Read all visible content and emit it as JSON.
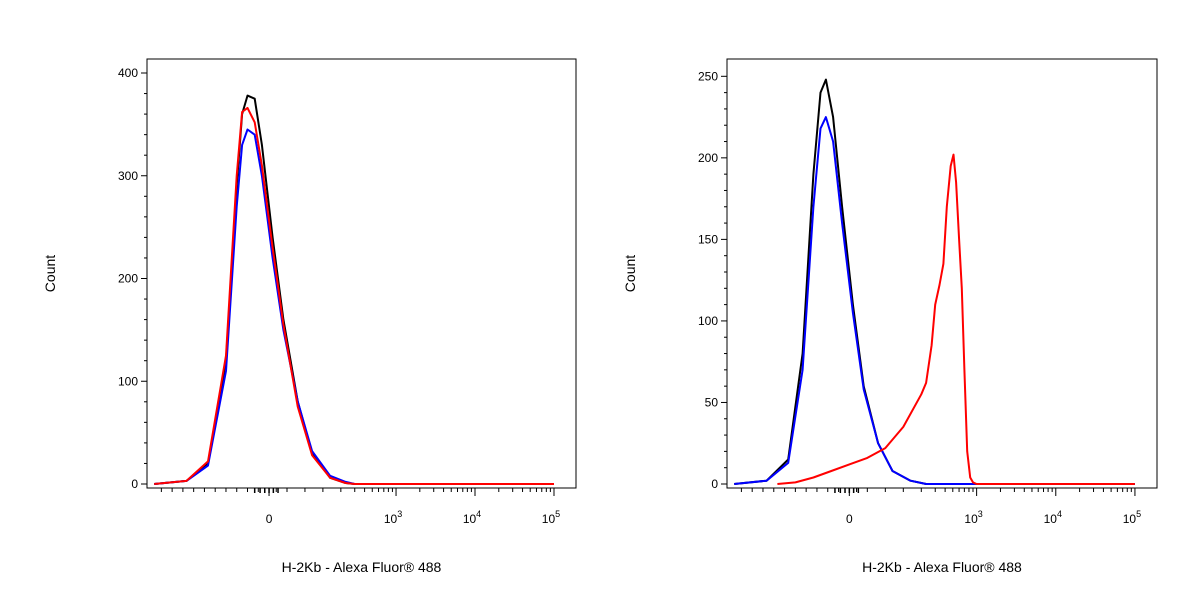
{
  "chart_data": [
    {
      "type": "line",
      "panel": "left",
      "xlabel": "H-2Kb - Alexa Fluor® 488",
      "ylabel": "Count",
      "x_scale": "biexponential",
      "ylim": [
        0,
        400
      ],
      "y_ticks": [
        {
          "value": 0,
          "label": "0"
        },
        {
          "value": 100,
          "label": "100"
        },
        {
          "value": 200,
          "label": "200"
        },
        {
          "value": 300,
          "label": "300"
        },
        {
          "value": 400,
          "label": "400"
        }
      ],
      "x_ticks": [
        {
          "value": 0,
          "base": "0",
          "exp": ""
        },
        {
          "value": 1000,
          "base": "10",
          "exp": "3"
        },
        {
          "value": 10000,
          "base": "10",
          "exp": "4"
        },
        {
          "value": 100000,
          "base": "10",
          "exp": "5"
        }
      ],
      "series": [
        {
          "color": "#000000",
          "points": [
            [
              -320,
              0
            ],
            [
              -230,
              3
            ],
            [
              -170,
              20
            ],
            [
              -120,
              120
            ],
            [
              -90,
              290
            ],
            [
              -75,
              360
            ],
            [
              -60,
              378
            ],
            [
              -40,
              375
            ],
            [
              -20,
              330
            ],
            [
              10,
              240
            ],
            [
              40,
              160
            ],
            [
              80,
              80
            ],
            [
              120,
              30
            ],
            [
              170,
              6
            ],
            [
              230,
              1
            ],
            [
              300,
              0
            ],
            [
              100000,
              0
            ]
          ]
        },
        {
          "color": "#0000ff",
          "points": [
            [
              -320,
              0
            ],
            [
              -230,
              3
            ],
            [
              -170,
              18
            ],
            [
              -120,
              110
            ],
            [
              -90,
              270
            ],
            [
              -75,
              330
            ],
            [
              -60,
              345
            ],
            [
              -40,
              340
            ],
            [
              -20,
              300
            ],
            [
              10,
              220
            ],
            [
              40,
              150
            ],
            [
              80,
              80
            ],
            [
              120,
              32
            ],
            [
              170,
              8
            ],
            [
              230,
              2
            ],
            [
              300,
              0
            ],
            [
              100000,
              0
            ]
          ]
        },
        {
          "color": "#ff0000",
          "points": [
            [
              -320,
              0
            ],
            [
              -230,
              3
            ],
            [
              -170,
              22
            ],
            [
              -120,
              125
            ],
            [
              -90,
              300
            ],
            [
              -75,
              362
            ],
            [
              -60,
              366
            ],
            [
              -40,
              352
            ],
            [
              -20,
              310
            ],
            [
              10,
              230
            ],
            [
              40,
              155
            ],
            [
              80,
              75
            ],
            [
              120,
              28
            ],
            [
              170,
              6
            ],
            [
              230,
              1
            ],
            [
              300,
              0
            ],
            [
              100000,
              0
            ]
          ]
        }
      ]
    },
    {
      "type": "line",
      "panel": "right",
      "xlabel": "H-2Kb - Alexa Fluor® 488",
      "ylabel": "Count",
      "x_scale": "biexponential",
      "ylim": [
        0,
        260
      ],
      "y_ticks": [
        {
          "value": 0,
          "label": "0"
        },
        {
          "value": 50,
          "label": "50"
        },
        {
          "value": 100,
          "label": "100"
        },
        {
          "value": 150,
          "label": "150"
        },
        {
          "value": 200,
          "label": "200"
        },
        {
          "value": 250,
          "label": "250"
        }
      ],
      "x_ticks": [
        {
          "value": 0,
          "base": "0",
          "exp": ""
        },
        {
          "value": 1000,
          "base": "10",
          "exp": "3"
        },
        {
          "value": 10000,
          "base": "10",
          "exp": "4"
        },
        {
          "value": 100000,
          "base": "10",
          "exp": "5"
        }
      ],
      "series": [
        {
          "color": "#000000",
          "points": [
            [
              -320,
              0
            ],
            [
              -230,
              2
            ],
            [
              -170,
              15
            ],
            [
              -130,
              80
            ],
            [
              -100,
              190
            ],
            [
              -80,
              240
            ],
            [
              -65,
              248
            ],
            [
              -45,
              225
            ],
            [
              -20,
              170
            ],
            [
              10,
              110
            ],
            [
              40,
              60
            ],
            [
              80,
              25
            ],
            [
              120,
              8
            ],
            [
              170,
              2
            ],
            [
              230,
              0
            ],
            [
              100000,
              0
            ]
          ]
        },
        {
          "color": "#0000ff",
          "points": [
            [
              -320,
              0
            ],
            [
              -230,
              2
            ],
            [
              -170,
              13
            ],
            [
              -130,
              70
            ],
            [
              -100,
              170
            ],
            [
              -80,
              218
            ],
            [
              -65,
              225
            ],
            [
              -45,
              210
            ],
            [
              -20,
              160
            ],
            [
              10,
              105
            ],
            [
              40,
              58
            ],
            [
              80,
              25
            ],
            [
              120,
              8
            ],
            [
              170,
              2
            ],
            [
              230,
              0
            ],
            [
              100000,
              0
            ]
          ]
        },
        {
          "color": "#ff0000",
          "points": [
            [
              -200,
              0
            ],
            [
              -150,
              1
            ],
            [
              -100,
              4
            ],
            [
              -50,
              8
            ],
            [
              0,
              12
            ],
            [
              50,
              16
            ],
            [
              100,
              22
            ],
            [
              150,
              35
            ],
            [
              200,
              55
            ],
            [
              230,
              62
            ],
            [
              270,
              85
            ],
            [
              300,
              110
            ],
            [
              340,
              122
            ],
            [
              380,
              135
            ],
            [
              420,
              170
            ],
            [
              470,
              195
            ],
            [
              510,
              202
            ],
            [
              550,
              185
            ],
            [
              600,
              150
            ],
            [
              650,
              120
            ],
            [
              700,
              70
            ],
            [
              760,
              20
            ],
            [
              830,
              4
            ],
            [
              900,
              1
            ],
            [
              1000,
              0
            ],
            [
              100000,
              0
            ]
          ]
        }
      ]
    }
  ]
}
